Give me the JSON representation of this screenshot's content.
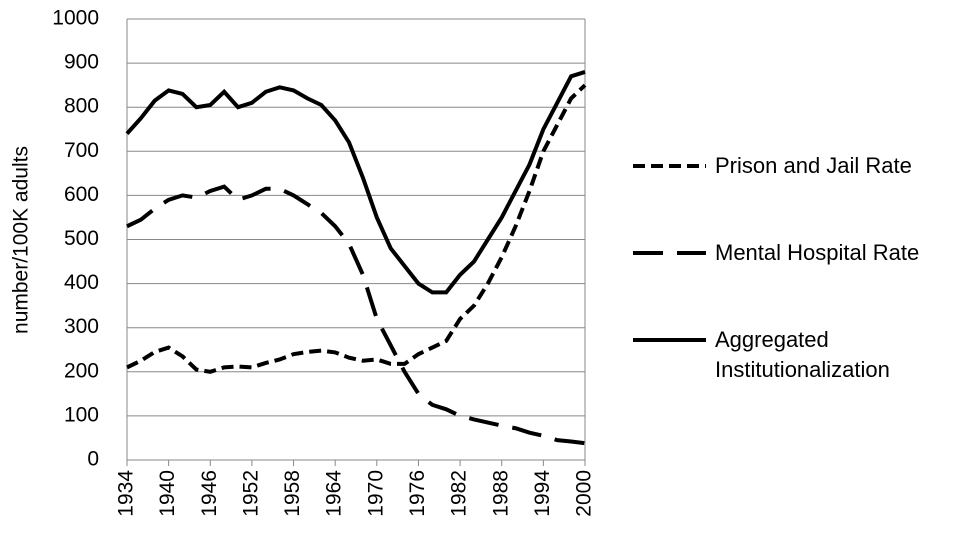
{
  "chart_data": {
    "type": "line",
    "y_label": "number/100K adults",
    "x": [
      1934,
      1936,
      1938,
      1940,
      1942,
      1944,
      1946,
      1948,
      1950,
      1952,
      1954,
      1956,
      1958,
      1960,
      1962,
      1964,
      1966,
      1968,
      1970,
      1972,
      1974,
      1976,
      1978,
      1980,
      1982,
      1984,
      1986,
      1988,
      1990,
      1992,
      1994,
      1996,
      1998,
      2000
    ],
    "series": [
      {
        "name": "Prison and Jail Rate",
        "color": "#000000",
        "dash": "short",
        "values": [
          210,
          225,
          245,
          255,
          235,
          205,
          200,
          210,
          212,
          210,
          220,
          228,
          240,
          245,
          248,
          244,
          232,
          225,
          228,
          218,
          218,
          240,
          255,
          270,
          320,
          350,
          400,
          460,
          530,
          610,
          700,
          760,
          820,
          850
        ]
      },
      {
        "name": "Mental Hospital Rate",
        "color": "#000000",
        "dash": "long",
        "values": [
          530,
          545,
          570,
          590,
          600,
          595,
          610,
          620,
          590,
          600,
          615,
          615,
          600,
          580,
          560,
          530,
          490,
          420,
          320,
          260,
          200,
          150,
          125,
          115,
          100,
          92,
          85,
          78,
          72,
          62,
          55,
          45,
          42,
          38
        ]
      },
      {
        "name": "Aggregated Institutionalization",
        "color": "#000000",
        "dash": "solid",
        "values": [
          740,
          775,
          815,
          838,
          830,
          800,
          805,
          835,
          800,
          810,
          835,
          845,
          838,
          820,
          805,
          770,
          720,
          640,
          550,
          480,
          440,
          400,
          380,
          380,
          420,
          450,
          500,
          550,
          610,
          670,
          750,
          810,
          870,
          880
        ]
      }
    ],
    "xlim": [
      1934,
      2000
    ],
    "xticks": [
      1934,
      1940,
      1946,
      1952,
      1958,
      1964,
      1970,
      1976,
      1982,
      1988,
      1994,
      2000
    ],
    "ylim": [
      0,
      1000
    ],
    "yticks": [
      0,
      100,
      200,
      300,
      400,
      500,
      600,
      700,
      800,
      900,
      1000
    ],
    "grid": true,
    "legend": "right"
  }
}
